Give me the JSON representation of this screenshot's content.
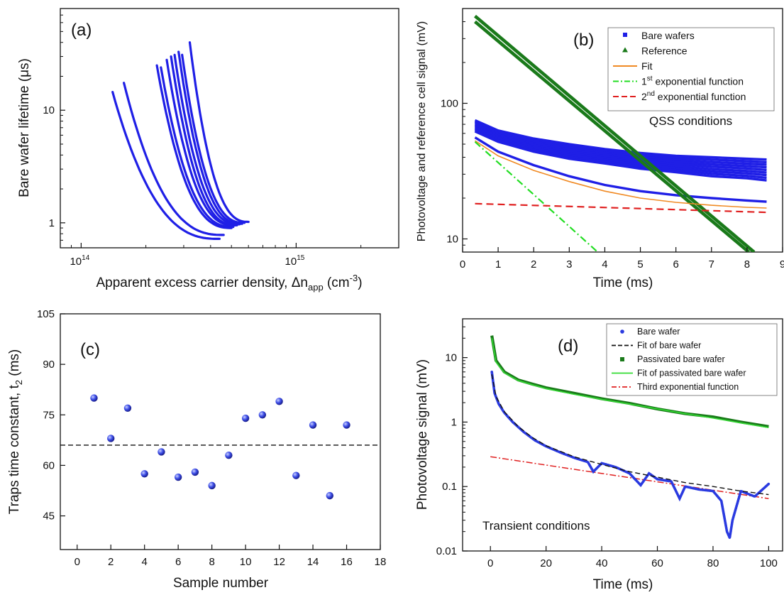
{
  "chart_data": [
    {
      "id": "a",
      "type": "line",
      "panel_label": "(a)",
      "xlabel": "Apparent excess carrier density, Δn",
      "xlabel_sub": "app",
      "xlabel_unit": " (cm",
      "xlabel_unit_sup": "-3",
      "xlabel_close": ")",
      "ylabel": "Bare wafer lifetime (μs)",
      "xscale": "log",
      "yscale": "log",
      "xlim": [
        80000000000000,
        3000000000000000
      ],
      "ylim": [
        0.6,
        80
      ],
      "x_ticks": [
        {
          "base": "10",
          "exp": "14",
          "value": 100000000000000
        },
        {
          "base": "10",
          "exp": "15",
          "value": 1000000000000000
        }
      ],
      "y_ticks": [
        {
          "label": "1",
          "value": 1
        },
        {
          "label": "10",
          "value": 10
        }
      ],
      "color": "#1f1fe6",
      "series": [
        {
          "x_end": 140000000000000,
          "y_end": 14.5,
          "x_start": 440000000000000,
          "y_start": 0.72
        },
        {
          "x_end": 158000000000000,
          "y_end": 17.5,
          "x_start": 460000000000000,
          "y_start": 0.78
        },
        {
          "x_end": 225000000000000,
          "y_end": 25,
          "x_start": 500000000000000,
          "y_start": 0.9
        },
        {
          "x_end": 235000000000000,
          "y_end": 24,
          "x_start": 510000000000000,
          "y_start": 0.92
        },
        {
          "x_end": 250000000000000,
          "y_end": 28,
          "x_start": 520000000000000,
          "y_start": 0.95
        },
        {
          "x_end": 262000000000000,
          "y_end": 30,
          "x_start": 530000000000000,
          "y_start": 0.95
        },
        {
          "x_end": 272000000000000,
          "y_end": 31,
          "x_start": 545000000000000,
          "y_start": 0.97
        },
        {
          "x_end": 284000000000000,
          "y_end": 33,
          "x_start": 560000000000000,
          "y_start": 0.98
        },
        {
          "x_end": 295000000000000,
          "y_end": 31,
          "x_start": 575000000000000,
          "y_start": 1.0
        },
        {
          "x_end": 320000000000000,
          "y_end": 40,
          "x_start": 600000000000000,
          "y_start": 1.02
        }
      ]
    },
    {
      "id": "b",
      "type": "line",
      "panel_label": "(b)",
      "xlabel": "Time (ms)",
      "ylabel": "Photovoltage and reference cell signal (mV)",
      "yscale": "log",
      "xlim": [
        0,
        9
      ],
      "ylim": [
        8,
        500
      ],
      "x_ticks": [
        0,
        1,
        2,
        3,
        4,
        5,
        6,
        7,
        8,
        9
      ],
      "y_ticks": [
        {
          "label": "10",
          "value": 10
        },
        {
          "label": "100",
          "value": 100
        }
      ],
      "annotation": "QSS conditions",
      "legend": [
        {
          "label": "Bare wafers",
          "sup": "",
          "rest": "",
          "style": "square",
          "color": "#1f1fe6"
        },
        {
          "label": "Reference",
          "sup": "",
          "rest": "",
          "style": "triangle",
          "color": "#1a7a1a"
        },
        {
          "label": "Fit",
          "sup": "",
          "rest": "",
          "style": "line",
          "color": "#f08a24"
        },
        {
          "label": "1",
          "sup": "st",
          "rest": " exponential function",
          "style": "dashdot",
          "color": "#22dd22"
        },
        {
          "label": "2",
          "sup": "nd",
          "rest": " exponential function",
          "style": "dash",
          "color": "#e02020"
        }
      ],
      "reference_series": [
        {
          "x_start": 0.35,
          "y_start": 440,
          "x_end": 8.2,
          "y_end": 8
        },
        {
          "x_start": 0.35,
          "y_start": 400,
          "x_end": 8.05,
          "y_end": 8
        }
      ],
      "bare_band": {
        "x": [
          0.35,
          1,
          2,
          3,
          4,
          5,
          6,
          7,
          8,
          8.55
        ],
        "upper": [
          75,
          63,
          55,
          50,
          46,
          43,
          41,
          40,
          39,
          38.5
        ],
        "lower": [
          62,
          52,
          44,
          39,
          36,
          33,
          31,
          29,
          28,
          27
        ]
      },
      "bare_low": {
        "x": [
          0.35,
          1,
          2,
          3,
          4,
          5,
          6,
          7,
          8,
          8.55
        ],
        "y": [
          56,
          44,
          35,
          29,
          25,
          22.5,
          21,
          20,
          19.2,
          18.8
        ]
      },
      "fit": {
        "x": [
          0.35,
          1,
          2,
          3,
          4,
          5,
          6,
          7,
          8,
          8.55
        ],
        "y": [
          53,
          41,
          32,
          26.5,
          22.5,
          20,
          18.6,
          17.7,
          17.1,
          16.9
        ]
      },
      "exp1": {
        "x_start": 0.35,
        "y_start": 52,
        "x_end": 3.8,
        "y_end": 8
      },
      "exp2": {
        "x_start": 0.35,
        "y_start": 18.2,
        "x_end": 8.55,
        "y_end": 15.7
      }
    },
    {
      "id": "c",
      "type": "scatter",
      "panel_label": "(c)",
      "xlabel": "Sample number",
      "ylabel": "Traps time constant, t",
      "ylabel_sub": "2",
      "ylabel_unit": " (ms)",
      "xlim": [
        -1,
        18
      ],
      "ylim": [
        35,
        105
      ],
      "x_ticks": [
        0,
        2,
        4,
        6,
        8,
        10,
        12,
        14,
        16,
        18
      ],
      "y_ticks": [
        45,
        60,
        75,
        90,
        105
      ],
      "mean_line": 66,
      "color": "#2a3ae0",
      "points": [
        {
          "x": 1,
          "y": 80
        },
        {
          "x": 2,
          "y": 68
        },
        {
          "x": 3,
          "y": 77
        },
        {
          "x": 4,
          "y": 57.5
        },
        {
          "x": 5,
          "y": 64
        },
        {
          "x": 6,
          "y": 56.5
        },
        {
          "x": 7,
          "y": 58
        },
        {
          "x": 8,
          "y": 54
        },
        {
          "x": 9,
          "y": 63
        },
        {
          "x": 10,
          "y": 74
        },
        {
          "x": 11,
          "y": 75
        },
        {
          "x": 12,
          "y": 79
        },
        {
          "x": 13,
          "y": 57
        },
        {
          "x": 14,
          "y": 72
        },
        {
          "x": 15,
          "y": 51
        },
        {
          "x": 16,
          "y": 72
        }
      ]
    },
    {
      "id": "d",
      "type": "scatter",
      "panel_label": "(d)",
      "xlabel": "Time (ms)",
      "ylabel": "Photovoltage signal (mV)",
      "yscale": "log",
      "xlim": [
        -10,
        105
      ],
      "ylim": [
        0.01,
        40
      ],
      "x_ticks": [
        0,
        20,
        40,
        60,
        80,
        100
      ],
      "y_ticks": [
        {
          "label": "0.01",
          "value": 0.01
        },
        {
          "label": "0.1",
          "value": 0.1
        },
        {
          "label": "1",
          "value": 1
        },
        {
          "label": "10",
          "value": 10
        }
      ],
      "annotation": "Transient conditions",
      "legend": [
        {
          "label": "Bare wafer",
          "style": "dot",
          "color": "#2a3ae0"
        },
        {
          "label": "Fit of bare wafer",
          "style": "dash",
          "color": "#111111"
        },
        {
          "label": "Passivated bare wafer",
          "style": "square",
          "color": "#1a7a1a"
        },
        {
          "label": "Fit of passivated bare wafer",
          "style": "line",
          "color": "#33dd33"
        },
        {
          "label": "Third exponential function",
          "style": "dashdot",
          "color": "#e02020"
        }
      ],
      "passivated": {
        "x": [
          0.5,
          2,
          5,
          10,
          15,
          20,
          30,
          40,
          50,
          60,
          70,
          80,
          90,
          100
        ],
        "y": [
          22,
          9,
          6,
          4.5,
          3.9,
          3.4,
          2.8,
          2.3,
          1.95,
          1.6,
          1.35,
          1.2,
          1.0,
          0.85
        ]
      },
      "bare": {
        "x": [
          0.5,
          1.5,
          3,
          5,
          8,
          12,
          16,
          20,
          25,
          30,
          35,
          37,
          40,
          45,
          50,
          54,
          57,
          60,
          65,
          68,
          70,
          75,
          80,
          83,
          85,
          86,
          87,
          90,
          95,
          100
        ],
        "y": [
          6,
          2.8,
          1.9,
          1.4,
          1.0,
          0.7,
          0.52,
          0.42,
          0.34,
          0.28,
          0.24,
          0.17,
          0.23,
          0.2,
          0.16,
          0.105,
          0.16,
          0.13,
          0.12,
          0.065,
          0.1,
          0.09,
          0.085,
          0.06,
          0.02,
          0.016,
          0.03,
          0.085,
          0.07,
          0.11
        ]
      },
      "bare_fit": {
        "x": [
          0.5,
          2,
          5,
          10,
          15,
          20,
          30,
          40,
          50,
          60,
          70,
          80,
          90,
          100
        ],
        "y": [
          5.5,
          2.5,
          1.45,
          0.85,
          0.58,
          0.43,
          0.29,
          0.22,
          0.17,
          0.14,
          0.115,
          0.1,
          0.085,
          0.075
        ]
      },
      "passivated_fit": {
        "x": [
          0.5,
          2,
          5,
          10,
          15,
          20,
          30,
          40,
          50,
          60,
          70,
          80,
          90,
          100
        ],
        "y": [
          20,
          8.5,
          5.8,
          4.4,
          3.8,
          3.3,
          2.7,
          2.25,
          1.9,
          1.6,
          1.35,
          1.15,
          0.97,
          0.82
        ]
      },
      "third_exp": {
        "x_start": 0,
        "y_start": 0.29,
        "x_end": 100,
        "y_end": 0.065
      }
    }
  ]
}
